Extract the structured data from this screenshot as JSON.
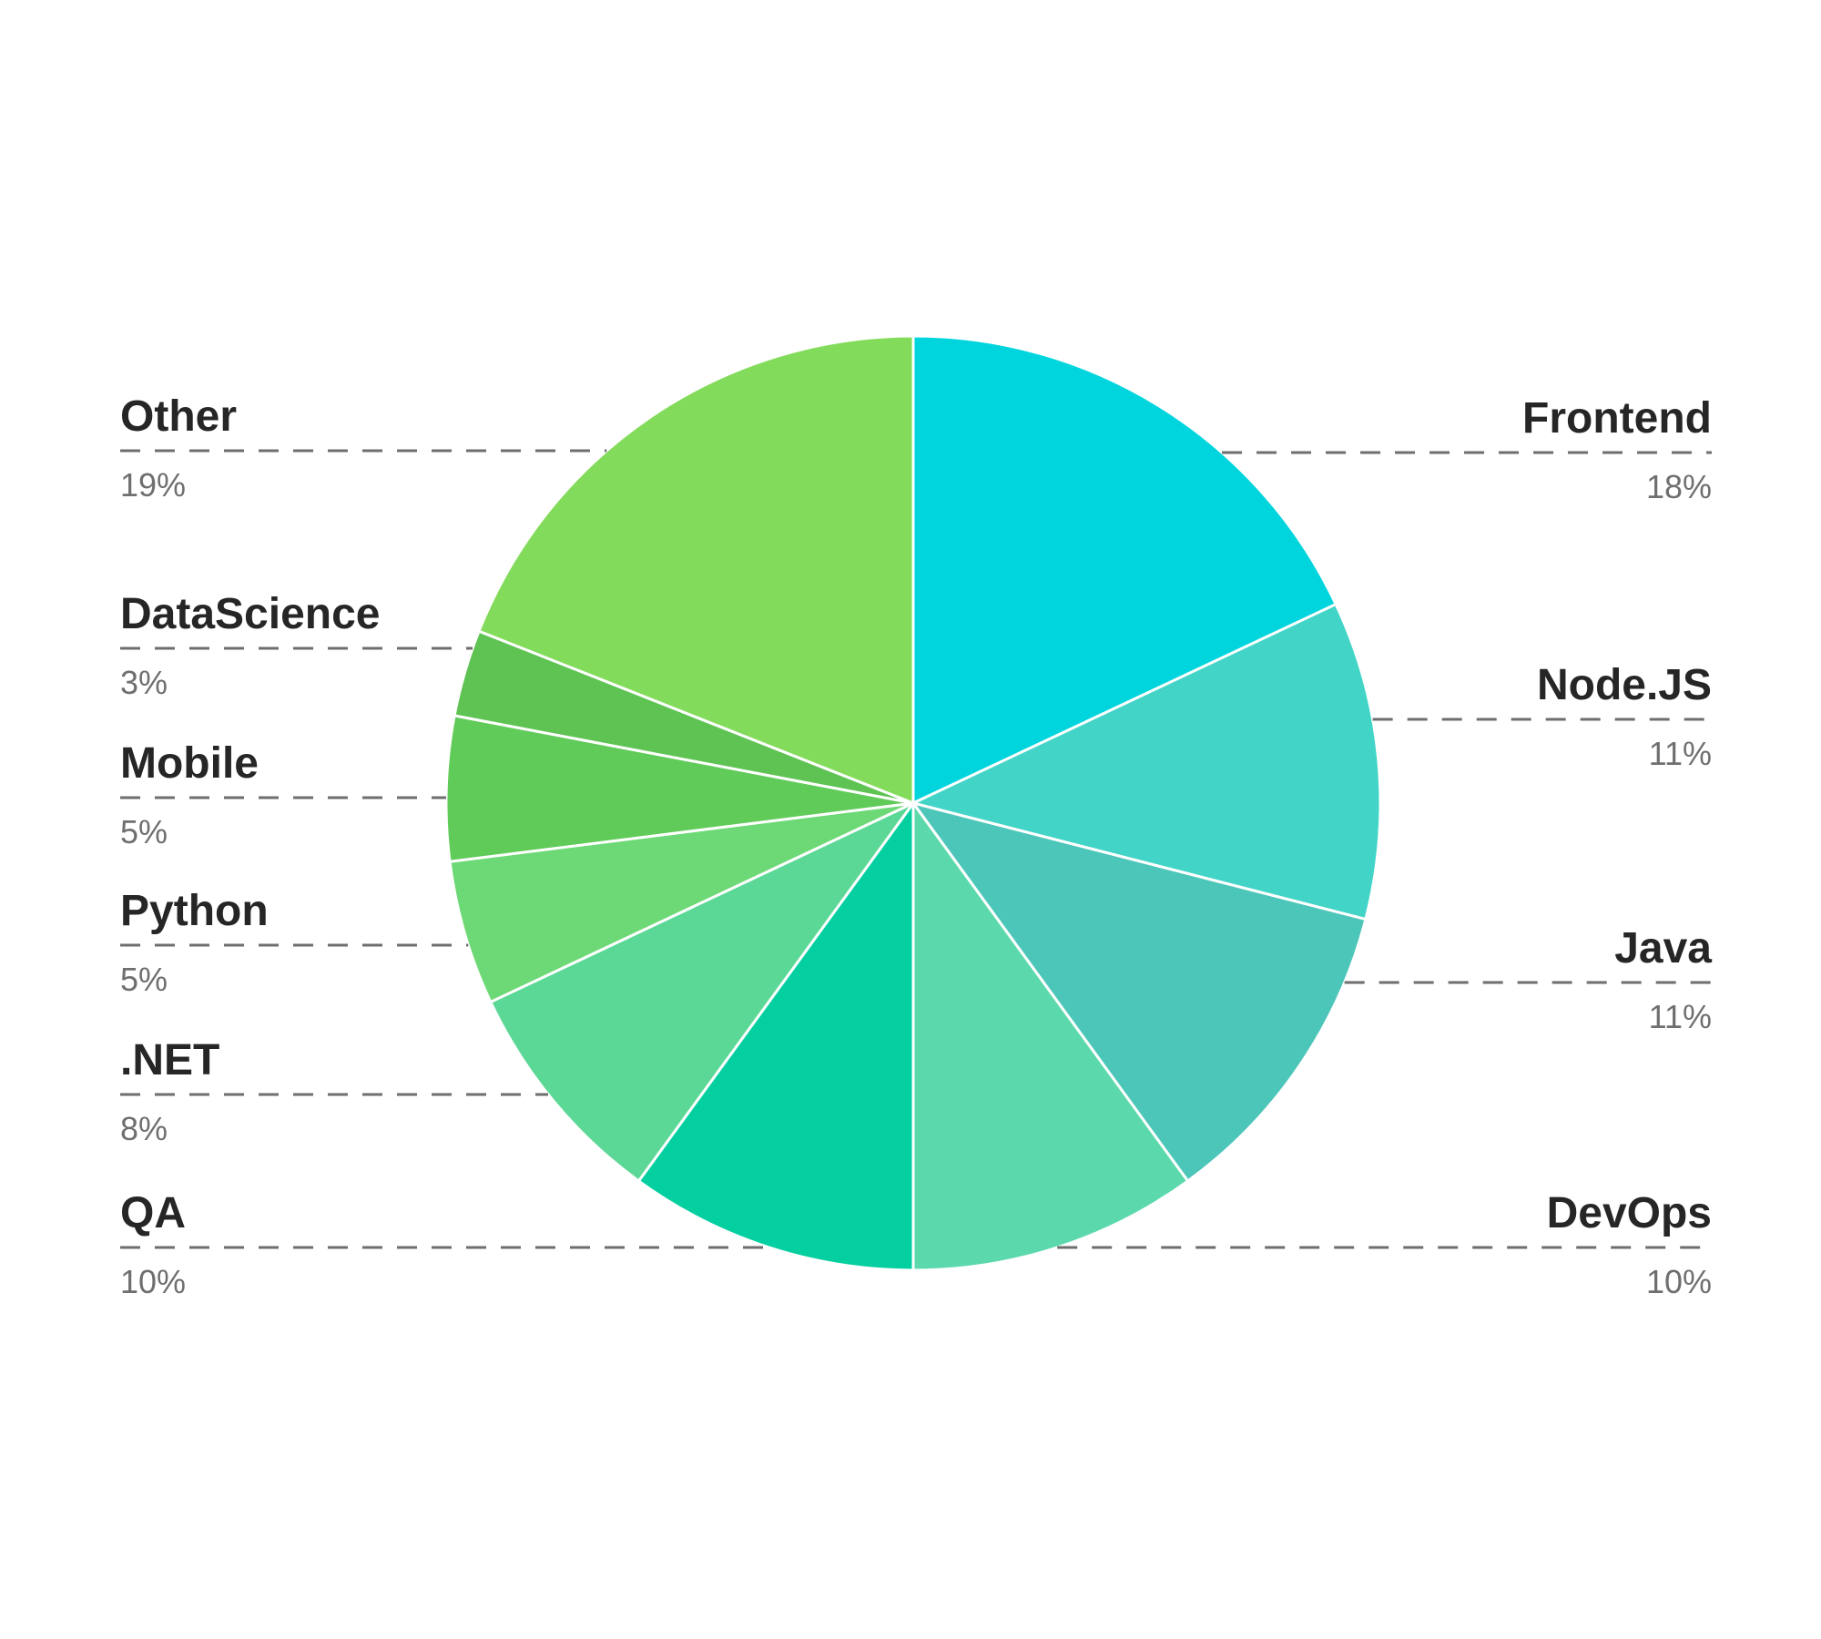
{
  "chart_data": {
    "type": "pie",
    "title": "",
    "legend": "none",
    "slices": [
      {
        "label": "Frontend",
        "value": 18,
        "display": "18%",
        "color": "#00D5DE",
        "side": "right"
      },
      {
        "label": "Node.JS",
        "value": 11,
        "display": "11%",
        "color": "#42D4C7",
        "side": "right"
      },
      {
        "label": "Java",
        "value": 11,
        "display": "11%",
        "color": "#4DC6BA",
        "side": "right"
      },
      {
        "label": "DevOps",
        "value": 10,
        "display": "10%",
        "color": "#5CD9AC",
        "side": "right"
      },
      {
        "label": "QA",
        "value": 10,
        "display": "10%",
        "color": "#03CFA0",
        "side": "left"
      },
      {
        "label": ".NET",
        "value": 8,
        "display": "8%",
        "color": "#5BD895",
        "side": "left"
      },
      {
        "label": "Python",
        "value": 5,
        "display": "5%",
        "color": "#6DD976",
        "side": "left"
      },
      {
        "label": "Mobile",
        "value": 5,
        "display": "5%",
        "color": "#61CB5A",
        "side": "left"
      },
      {
        "label": "DataScience",
        "value": 3,
        "display": "3%",
        "color": "#5EC353",
        "side": "left"
      },
      {
        "label": "Other",
        "value": 19,
        "display": "19%",
        "color": "#83DB5B",
        "side": "left"
      }
    ]
  }
}
